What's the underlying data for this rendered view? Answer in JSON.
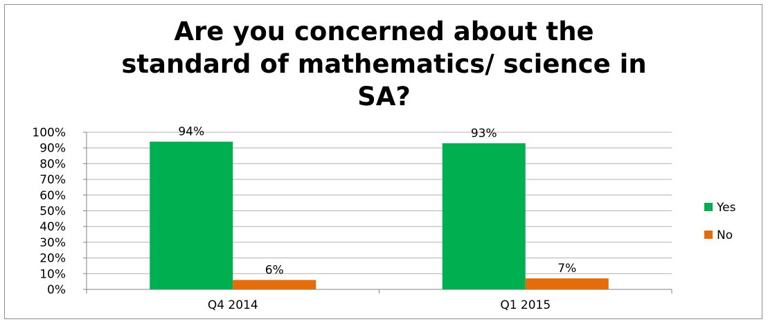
{
  "chart_data": {
    "type": "bar",
    "title_lines": [
      "Are you concerned about the",
      "standard of mathematics/ science in",
      "SA?"
    ],
    "categories": [
      "Q4 2014",
      "Q1 2015"
    ],
    "series": [
      {
        "name": "Yes",
        "values": [
          94,
          93
        ],
        "color": "#00B050",
        "labels": [
          "94%",
          "93%"
        ]
      },
      {
        "name": "No",
        "values": [
          6,
          7
        ],
        "color": "#E46C0A",
        "labels": [
          "6%",
          "7%"
        ]
      }
    ],
    "ylim": [
      0,
      100
    ],
    "yticks": [
      "0%",
      "10%",
      "20%",
      "30%",
      "40%",
      "50%",
      "60%",
      "70%",
      "80%",
      "90%",
      "100%"
    ],
    "grid": true,
    "legend_position": "right"
  }
}
